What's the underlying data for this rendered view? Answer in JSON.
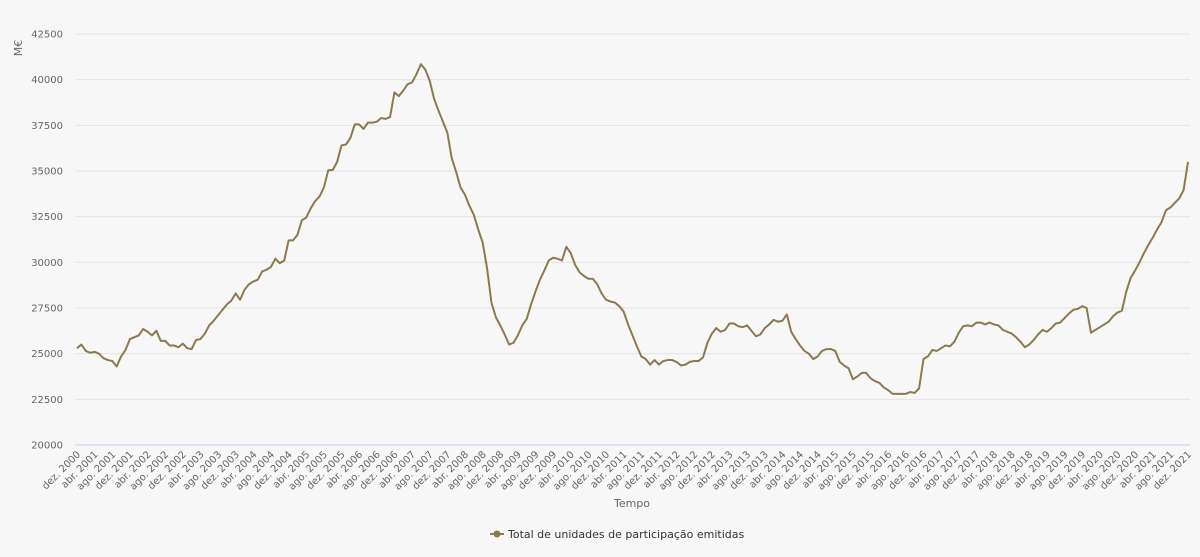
{
  "chart_data": {
    "type": "line",
    "ylabel": "M€",
    "xlabel": "Tempo",
    "ylim": [
      20000,
      42500
    ],
    "y_ticks": [
      20000,
      22500,
      25000,
      27500,
      30000,
      32500,
      35000,
      37500,
      40000,
      42500
    ],
    "grid": "horizontal",
    "legend": "bottom-center",
    "color": "#8b7a4e",
    "x_tick_labels": [
      "dez. 2000",
      "abr. 2001",
      "ago. 2001",
      "dez. 2001",
      "abr. 2002",
      "ago. 2002",
      "dez. 2002",
      "abr. 2003",
      "ago. 2003",
      "dez. 2003",
      "abr. 2004",
      "ago. 2004",
      "dez. 2004",
      "abr. 2005",
      "ago. 2005",
      "dez. 2005",
      "abr. 2006",
      "ago. 2006",
      "dez. 2006",
      "abr. 2007",
      "ago. 2007",
      "dez. 2007",
      "abr. 2008",
      "ago. 2008",
      "dez. 2008",
      "abr. 2009",
      "ago. 2009",
      "dez. 2009",
      "abr. 2010",
      "ago. 2010",
      "dez. 2010",
      "abr. 2011",
      "ago. 2011",
      "dez. 2011",
      "abr. 2012",
      "ago. 2012",
      "dez. 2012",
      "abr. 2013",
      "ago. 2013",
      "dez. 2013",
      "abr. 2014",
      "ago. 2014",
      "dez. 2014",
      "abr. 2015",
      "ago. 2015",
      "dez. 2015",
      "abr. 2016",
      "ago. 2016",
      "dez. 2016",
      "abr. 2017",
      "ago. 2017",
      "dez. 2017",
      "abr. 2018",
      "ago. 2018",
      "dez. 2018",
      "abr. 2019",
      "ago. 2019",
      "dez. 2019",
      "abr. 2020",
      "ago. 2020",
      "dez. 2020",
      "abr. 2021",
      "ago. 2021",
      "dez. 2021"
    ],
    "series": [
      {
        "name": "Total de unidades de participação emitidas",
        "start": "dez. 2000",
        "values": [
          25300,
          25500,
          25150,
          25050,
          25100,
          25000,
          24750,
          24650,
          24600,
          24300,
          24850,
          25200,
          25800,
          25900,
          26000,
          26350,
          26200,
          26000,
          26250,
          25700,
          25700,
          25450,
          25450,
          25350,
          25550,
          25300,
          25250,
          25750,
          25800,
          26100,
          26550,
          26800,
          27100,
          27400,
          27700,
          27900,
          28300,
          27950,
          28500,
          28800,
          28950,
          29050,
          29500,
          29600,
          29750,
          30200,
          29950,
          30100,
          31200,
          31200,
          31500,
          32300,
          32450,
          32950,
          33350,
          33600,
          34100,
          35050,
          35050,
          35500,
          36400,
          36450,
          36800,
          37550,
          37550,
          37300,
          37650,
          37650,
          37700,
          37900,
          37850,
          37950,
          39300,
          39100,
          39400,
          39750,
          39850,
          40300,
          40850,
          40550,
          39950,
          38950,
          38300,
          37700,
          37100,
          35700,
          34950,
          34100,
          33700,
          33100,
          32600,
          31800,
          31100,
          29700,
          27800,
          27000,
          26550,
          26050,
          25500,
          25600,
          26000,
          26550,
          26900,
          27700,
          28400,
          29050,
          29550,
          30100,
          30250,
          30200,
          30100,
          30850,
          30500,
          29850,
          29450,
          29250,
          29100,
          29100,
          28800,
          28300,
          27950,
          27850,
          27800,
          27600,
          27300,
          26600,
          26000,
          25400,
          24850,
          24700,
          24400,
          24650,
          24400,
          24600,
          24650,
          24650,
          24550,
          24350,
          24400,
          24550,
          24600,
          24600,
          24800,
          25600,
          26100,
          26400,
          26200,
          26300,
          26650,
          26650,
          26500,
          26450,
          26550,
          26250,
          25950,
          26050,
          26400,
          26600,
          26850,
          26750,
          26800,
          27150,
          26200,
          25800,
          25450,
          25150,
          25000,
          24700,
          24850,
          25150,
          25250,
          25250,
          25150,
          24550,
          24350,
          24200,
          23600,
          23750,
          23950,
          23950,
          23650,
          23500,
          23400,
          23150,
          23000,
          22800,
          22800,
          22800,
          22800,
          22900,
          22850,
          23100,
          24700,
          24850,
          25200,
          25150,
          25300,
          25450,
          25400,
          25650,
          26150,
          26500,
          26550,
          26500,
          26700,
          26700,
          26600,
          26700,
          26600,
          26550,
          26300,
          26200,
          26100,
          25900,
          25650,
          25350,
          25500,
          25750,
          26050,
          26300,
          26200,
          26400,
          26650,
          26700,
          26950,
          27200,
          27400,
          27450,
          27600,
          27500,
          26150,
          26300,
          26450,
          26600,
          26750,
          27050,
          27250,
          27350,
          28400,
          29150,
          29550,
          30000,
          30500,
          30950,
          31350,
          31800,
          32200,
          32850,
          33000,
          33250,
          33500,
          33950,
          35500
        ]
      }
    ]
  }
}
